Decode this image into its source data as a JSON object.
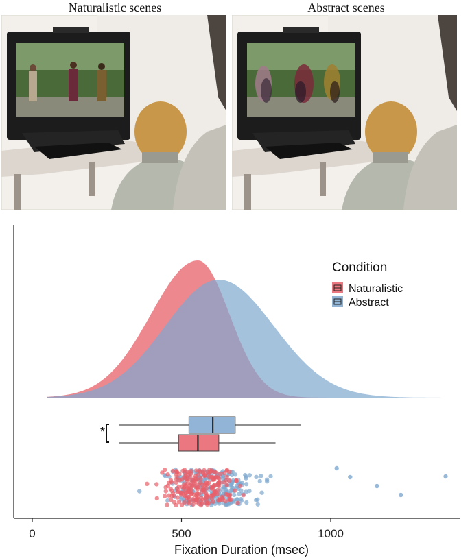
{
  "panels": {
    "left_title": "Naturalistic scenes",
    "right_title": "Abstract scenes"
  },
  "colors": {
    "naturalistic": "#e8606a",
    "abstract": "#7fa8cf",
    "overlap": "#9a8aa8",
    "scene_bg": "#f3f0ec",
    "monitor": "#1c1c1c",
    "hair": "#c9974a",
    "shirt": "#b5b8ad"
  },
  "chart_data": {
    "type": "density-boxplot-raincloud",
    "xlabel": "Fixation Duration (msec)",
    "xlim": [
      -60,
      1450
    ],
    "xticks": [
      0,
      500,
      1000
    ],
    "xtick_labels": [
      "0",
      "500",
      "1000"
    ],
    "legend": {
      "title": "Condition",
      "position": "top-right",
      "entries": [
        "Naturalistic",
        "Abstract"
      ]
    },
    "series": [
      {
        "name": "Naturalistic",
        "color": "#e8606a",
        "density_mode": 555,
        "density_range": [
          50,
          1000
        ],
        "box": {
          "whisker_low": 290,
          "q1": 490,
          "median": 555,
          "q3": 625,
          "whisker_high": 815
        }
      },
      {
        "name": "Abstract",
        "color": "#7fa8cf",
        "density_mode": 625,
        "density_range": [
          50,
          1400
        ],
        "box": {
          "whisker_low": 290,
          "q1": 525,
          "median": 605,
          "q3": 680,
          "whisker_high": 900
        }
      }
    ],
    "significance": "*",
    "abstract_outliers": [
      1020,
      1065,
      1155,
      1235,
      1385
    ],
    "grid": false
  }
}
